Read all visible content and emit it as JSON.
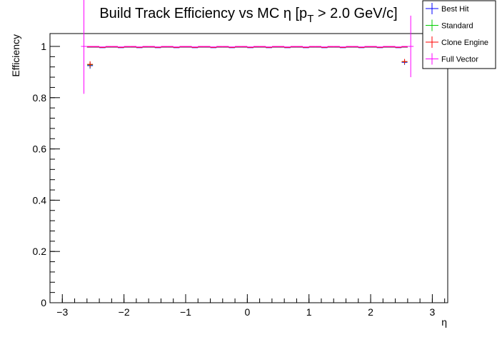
{
  "chart_data": {
    "type": "scatter",
    "title_main": "Build Track Efficiency vs MC η [p",
    "title_sub": "T",
    "title_tail": " > 2.0 GeV/c]",
    "xlabel": "η",
    "ylabel": "Efficiency",
    "xlim": [
      -3.2,
      3.25
    ],
    "ylim": [
      0,
      1.05
    ],
    "x_ticks": [
      -3,
      -2,
      -1,
      0,
      1,
      2,
      3
    ],
    "x_tick_labels": [
      "−3",
      "−2",
      "−1",
      "0",
      "1",
      "2",
      "3"
    ],
    "y_ticks": [
      0,
      0.2,
      0.4,
      0.6,
      0.8,
      1
    ],
    "y_tick_labels": [
      "0",
      "0.2",
      "0.4",
      "0.6",
      "0.8",
      "1"
    ],
    "grid": false,
    "legend_position": "top-right",
    "series": [
      {
        "name": "Best Hit",
        "color": "#0000ff",
        "edge_points": [
          {
            "x": -2.55,
            "y": 0.925,
            "err": 0.012
          },
          {
            "x": 2.55,
            "y": 0.938,
            "err": 0.01
          }
        ],
        "mid_efficiency": 0.997
      },
      {
        "name": "Standard",
        "color": "#00cc00",
        "edge_points": [
          {
            "x": -2.55,
            "y": 0.928,
            "err": 0.012
          },
          {
            "x": 2.55,
            "y": 0.94,
            "err": 0.01
          }
        ],
        "mid_efficiency": 0.998
      },
      {
        "name": "Clone Engine",
        "color": "#ff0000",
        "edge_points": [
          {
            "x": -2.55,
            "y": 0.93,
            "err": 0.012
          },
          {
            "x": 2.55,
            "y": 0.941,
            "err": 0.01
          }
        ],
        "mid_efficiency": 0.998
      },
      {
        "name": "Full Vector",
        "color": "#ff00ff",
        "edge_points": [
          {
            "x": -2.65,
            "y": 1.0,
            "err": 0.185
          },
          {
            "x": 2.65,
            "y": 1.0,
            "err": 0.12
          }
        ],
        "mid_efficiency": 1.0
      }
    ],
    "mid_range": [
      -2.6,
      2.6
    ],
    "bin_width": 0.1
  }
}
